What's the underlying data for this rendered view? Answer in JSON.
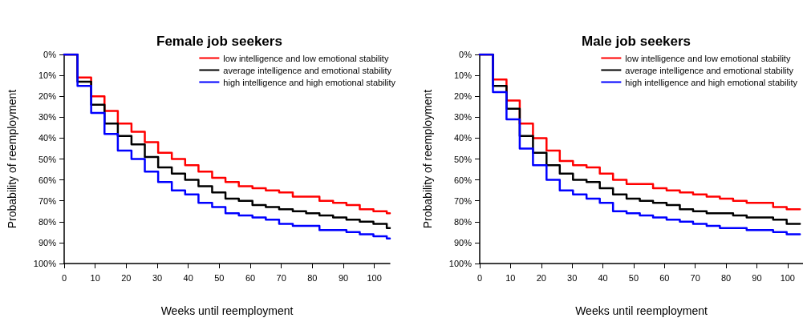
{
  "chart_data": [
    {
      "type": "step",
      "title": "Female job seekers",
      "xlabel": "Weeks until reemployment",
      "ylabel": "Probability of reemployment",
      "xlim": [
        0,
        105
      ],
      "xticks": [
        0,
        10,
        20,
        30,
        40,
        50,
        60,
        70,
        80,
        90,
        100
      ],
      "ylim": [
        100,
        0
      ],
      "yticks": [
        {
          "value": 0,
          "label": "0%"
        },
        {
          "value": 10,
          "label": "10%"
        },
        {
          "value": 20,
          "label": "20%"
        },
        {
          "value": 30,
          "label": "30%"
        },
        {
          "value": 40,
          "label": "40%"
        },
        {
          "value": 50,
          "label": "50%"
        },
        {
          "value": 60,
          "label": "60%"
        },
        {
          "value": 70,
          "label": "70%"
        },
        {
          "value": 80,
          "label": "80%"
        },
        {
          "value": 90,
          "label": "90%"
        },
        {
          "value": 100,
          "label": "100%"
        }
      ],
      "grid": false,
      "legend": "top right",
      "marker": "none",
      "line_style": "solid",
      "x": [
        0,
        4.3,
        8.7,
        13,
        17.3,
        21.7,
        26,
        30.3,
        34.7,
        39,
        43.3,
        47.7,
        52,
        56.3,
        60.7,
        65,
        69.3,
        73.7,
        78,
        82.3,
        86.7,
        91,
        95.3,
        99.7,
        104,
        105
      ],
      "series": [
        {
          "name": "low intelligence and low emotional stability",
          "color": "#ff0000",
          "values": [
            0,
            11,
            20,
            27,
            33,
            37,
            42,
            47,
            50,
            53,
            56,
            59,
            61,
            63,
            64,
            65,
            66,
            68,
            68,
            70,
            71,
            72,
            74,
            75,
            76,
            76
          ]
        },
        {
          "name": "average intelligence and emotional stability",
          "color": "#000000",
          "values": [
            0,
            13,
            24,
            33,
            39,
            43,
            49,
            54,
            57,
            60,
            63,
            66,
            69,
            70,
            72,
            73,
            74,
            75,
            76,
            77,
            78,
            79,
            80,
            81,
            83,
            83
          ]
        },
        {
          "name": "high intelligence and high emotional stability",
          "color": "#0000ff",
          "values": [
            0,
            15,
            28,
            38,
            46,
            50,
            56,
            61,
            65,
            67,
            71,
            73,
            76,
            77,
            78,
            79,
            81,
            82,
            82,
            84,
            84,
            85,
            86,
            87,
            88,
            88
          ]
        }
      ]
    },
    {
      "type": "step",
      "title": "Male job seekers",
      "xlabel": "Weeks until reemployment",
      "ylabel": "Probability of reemployment",
      "xlim": [
        0,
        105
      ],
      "xticks": [
        0,
        10,
        20,
        30,
        40,
        50,
        60,
        70,
        80,
        90,
        100
      ],
      "ylim": [
        100,
        0
      ],
      "yticks": [
        {
          "value": 0,
          "label": "0%"
        },
        {
          "value": 10,
          "label": "10%"
        },
        {
          "value": 20,
          "label": "20%"
        },
        {
          "value": 30,
          "label": "30%"
        },
        {
          "value": 40,
          "label": "40%"
        },
        {
          "value": 50,
          "label": "50%"
        },
        {
          "value": 60,
          "label": "60%"
        },
        {
          "value": 70,
          "label": "70%"
        },
        {
          "value": 80,
          "label": "80%"
        },
        {
          "value": 90,
          "label": "90%"
        },
        {
          "value": 100,
          "label": "100%"
        }
      ],
      "grid": false,
      "legend": "top right",
      "marker": "none",
      "line_style": "solid",
      "x": [
        0,
        4.3,
        8.7,
        13,
        17.3,
        21.7,
        26,
        30.3,
        34.7,
        39,
        43.3,
        47.7,
        52,
        56.3,
        60.7,
        65,
        69.3,
        73.7,
        78,
        82.3,
        86.7,
        91,
        95.3,
        99.7,
        104
      ],
      "series": [
        {
          "name": "low intelligence and low emotional stability",
          "color": "#ff0000",
          "values": [
            0,
            12,
            22,
            33,
            40,
            46,
            51,
            53,
            54,
            57,
            60,
            62,
            62,
            64,
            65,
            66,
            67,
            68,
            69,
            70,
            71,
            71,
            73,
            74,
            74
          ]
        },
        {
          "name": "average intelligence and emotional stability",
          "color": "#000000",
          "values": [
            0,
            15,
            26,
            39,
            47,
            53,
            57,
            60,
            61,
            64,
            67,
            69,
            70,
            71,
            72,
            74,
            75,
            76,
            76,
            77,
            78,
            78,
            79,
            81,
            81
          ]
        },
        {
          "name": "high intelligence and high emotional stability",
          "color": "#0000ff",
          "values": [
            0,
            18,
            31,
            45,
            53,
            60,
            65,
            67,
            69,
            71,
            75,
            76,
            77,
            78,
            79,
            80,
            81,
            82,
            83,
            83,
            84,
            84,
            85,
            86,
            86
          ]
        }
      ]
    }
  ]
}
